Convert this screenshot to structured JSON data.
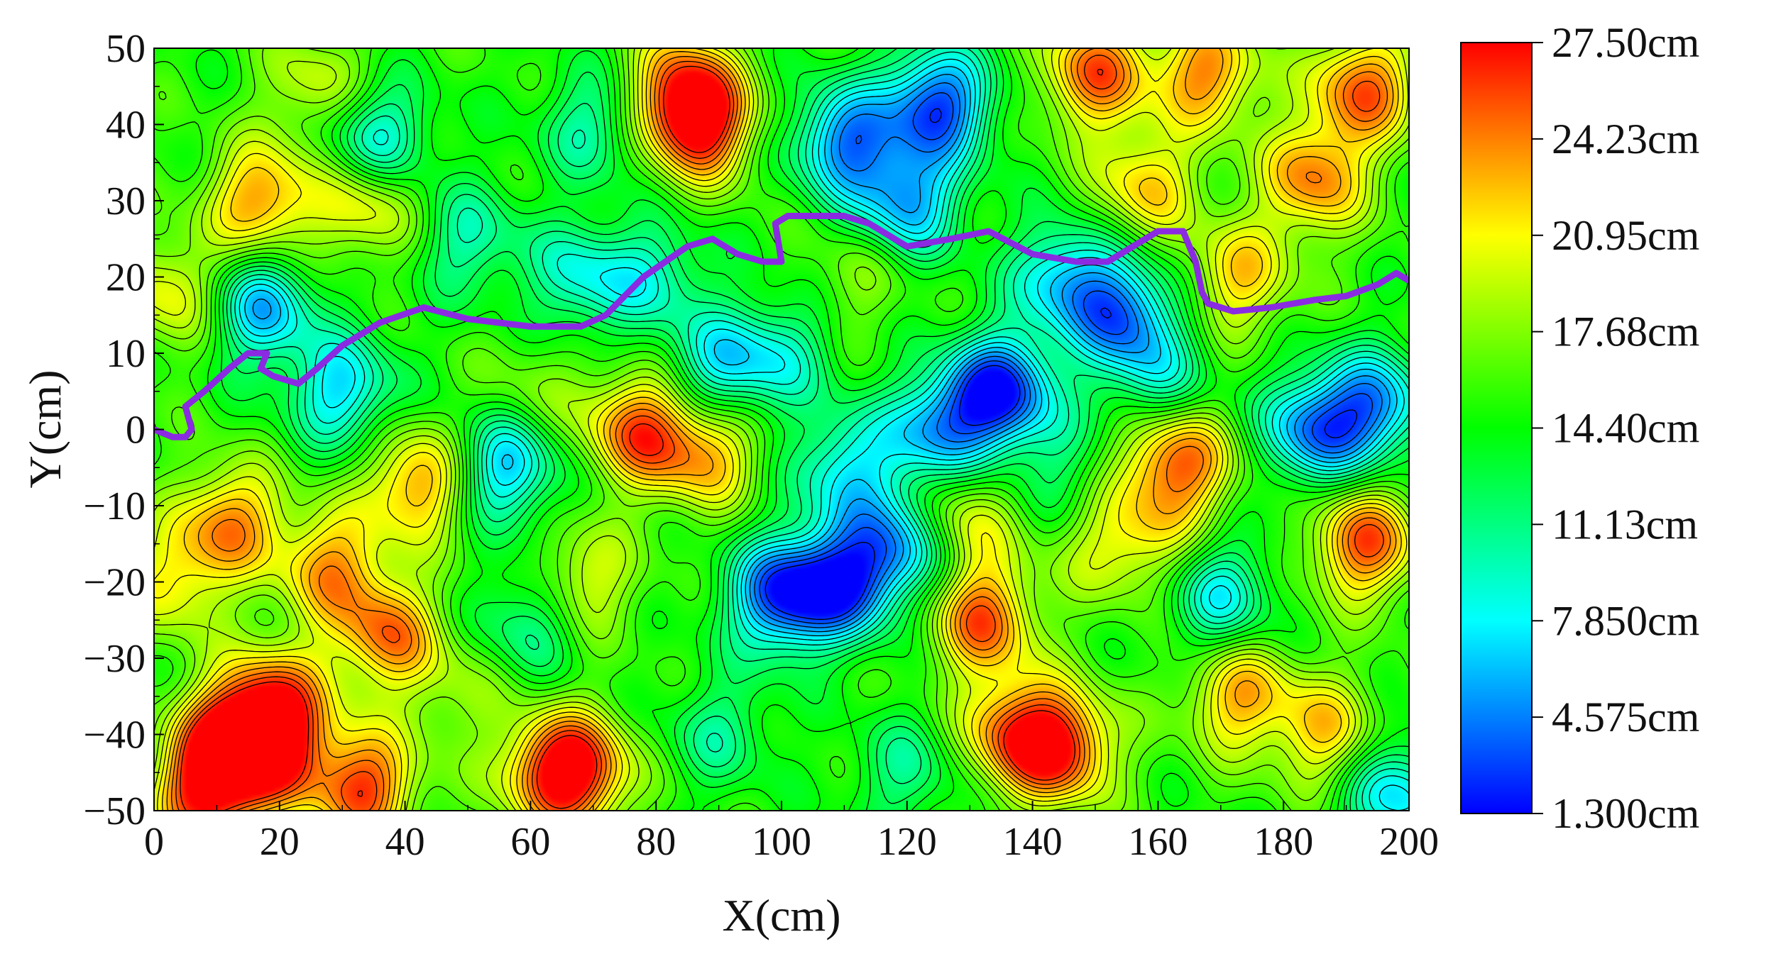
{
  "chart_data": {
    "type": "heatmap",
    "subtype": "filled contour map with overlaid path",
    "title": "",
    "xlabel": "X(cm)",
    "ylabel": "Y(cm)",
    "xlim": [
      0,
      200
    ],
    "ylim": [
      -50,
      50
    ],
    "xticks": [
      "0",
      "20",
      "40",
      "60",
      "80",
      "100",
      "120",
      "140",
      "160",
      "180",
      "200"
    ],
    "yticks": [
      "50",
      "40",
      "30",
      "20",
      "10",
      "0",
      "−10",
      "−20",
      "−30",
      "−40",
      "−50"
    ],
    "grid": false,
    "colorbar": {
      "min": 1.3,
      "max": 27.5,
      "ticks": [
        "27.50cm",
        "24.23cm",
        "20.95cm",
        "17.68cm",
        "14.40cm",
        "11.13cm",
        "7.850cm",
        "4.575cm",
        "1.300cm"
      ],
      "colormap": [
        "#0000ff",
        "#0080ff",
        "#00ffff",
        "#00ff80",
        "#00ff00",
        "#80ff00",
        "#ffff00",
        "#ff8000",
        "#ff0000"
      ],
      "placement": "right"
    },
    "contour_line_color": "#000000",
    "features": [
      {
        "x": 8,
        "y": -48,
        "value": 26.5
      },
      {
        "x": 12,
        "y": -40,
        "value": 24.5
      },
      {
        "x": 18,
        "y": -42,
        "value": 25.5
      },
      {
        "x": 3,
        "y": -20,
        "value": 21
      },
      {
        "x": 12,
        "y": -12,
        "value": 23.5
      },
      {
        "x": 28,
        "y": -18,
        "value": 23
      },
      {
        "x": 37,
        "y": -27,
        "value": 24
      },
      {
        "x": 33,
        "y": -47,
        "value": 26
      },
      {
        "x": 20,
        "y": -35,
        "value": 22
      },
      {
        "x": 42,
        "y": -7,
        "value": 24
      },
      {
        "x": 77,
        "y": 0,
        "value": 25
      },
      {
        "x": 88,
        "y": -3,
        "value": 23
      },
      {
        "x": 68,
        "y": -20,
        "value": 21
      },
      {
        "x": 63,
        "y": -45,
        "value": 23
      },
      {
        "x": 68,
        "y": -45,
        "value": 24
      },
      {
        "x": 87,
        "y": 40,
        "value": 26
      },
      {
        "x": 84,
        "y": 45,
        "value": 24
      },
      {
        "x": 17,
        "y": 30,
        "value": 24
      },
      {
        "x": 34,
        "y": 30,
        "value": 22
      },
      {
        "x": 3,
        "y": 18,
        "value": 21
      },
      {
        "x": 26,
        "y": 45,
        "value": 20
      },
      {
        "x": 132,
        "y": -25,
        "value": 25
      },
      {
        "x": 137,
        "y": -40,
        "value": 24
      },
      {
        "x": 145,
        "y": -42,
        "value": 25.5
      },
      {
        "x": 128,
        "y": -12,
        "value": 22
      },
      {
        "x": 158,
        "y": -15,
        "value": 20
      },
      {
        "x": 165,
        "y": -5,
        "value": 22
      },
      {
        "x": 193,
        "y": -15,
        "value": 25.5
      },
      {
        "x": 173,
        "y": -35,
        "value": 23
      },
      {
        "x": 187,
        "y": -40,
        "value": 22
      },
      {
        "x": 193,
        "y": 45,
        "value": 25
      },
      {
        "x": 150,
        "y": 47,
        "value": 25
      },
      {
        "x": 168,
        "y": 47,
        "value": 24
      },
      {
        "x": 185,
        "y": 33,
        "value": 24
      },
      {
        "x": 173,
        "y": 20,
        "value": 22
      },
      {
        "x": 158,
        "y": 32,
        "value": 22
      },
      {
        "x": 150,
        "y": -15,
        "value": 18
      },
      {
        "x": 112,
        "y": 20,
        "value": 18
      },
      {
        "x": 60,
        "y": 5,
        "value": 18
      },
      {
        "x": 48,
        "y": -35,
        "value": 18
      },
      {
        "x": 160,
        "y": -2,
        "value": 21
      },
      {
        "x": 100,
        "y": 10,
        "value": 10
      },
      {
        "x": 135,
        "y": 5,
        "value": 2
      },
      {
        "x": 100,
        "y": -22,
        "value": 3
      },
      {
        "x": 110,
        "y": -20,
        "value": 4
      },
      {
        "x": 120,
        "y": -15,
        "value": 6
      },
      {
        "x": 125,
        "y": 43,
        "value": 3
      },
      {
        "x": 110,
        "y": 38,
        "value": 5
      },
      {
        "x": 120,
        "y": 30,
        "value": 6
      },
      {
        "x": 185,
        "y": 0,
        "value": 5
      },
      {
        "x": 195,
        "y": 3,
        "value": 6
      },
      {
        "x": 155,
        "y": 15,
        "value": 5
      },
      {
        "x": 145,
        "y": 20,
        "value": 7
      },
      {
        "x": 170,
        "y": -22,
        "value": 8
      },
      {
        "x": 125,
        "y": 0,
        "value": 6
      },
      {
        "x": 110,
        "y": -5,
        "value": 8
      },
      {
        "x": 17,
        "y": 16,
        "value": 6
      },
      {
        "x": 30,
        "y": 5,
        "value": 7
      },
      {
        "x": 56,
        "y": -5,
        "value": 6
      },
      {
        "x": 35,
        "y": 38,
        "value": 7
      },
      {
        "x": 68,
        "y": 20,
        "value": 9
      },
      {
        "x": 90,
        "y": 8,
        "value": 8
      },
      {
        "x": 80,
        "y": 20,
        "value": 10
      },
      {
        "x": 70,
        "y": 40,
        "value": 10
      },
      {
        "x": 50,
        "y": 25,
        "value": 10
      },
      {
        "x": 198,
        "y": -48,
        "value": 7
      },
      {
        "x": 60,
        "y": -25,
        "value": 10
      },
      {
        "x": 160,
        "y": 5,
        "value": 9
      },
      {
        "x": 145,
        "y": -5,
        "value": 12
      },
      {
        "x": 90,
        "y": -40,
        "value": 11
      },
      {
        "x": 120,
        "y": -45,
        "value": 11
      }
    ],
    "path": {
      "color": "#8a2be2",
      "x": [
        0,
        3,
        5,
        6,
        5,
        8,
        12,
        15,
        18,
        17,
        19,
        23,
        26,
        30,
        36,
        43,
        50,
        60,
        68,
        72,
        78,
        85,
        89,
        93,
        97,
        100,
        99,
        101,
        106,
        110,
        114,
        120,
        127,
        133,
        140,
        147,
        152,
        156,
        160,
        164,
        166,
        167,
        168,
        172,
        178,
        185,
        190,
        195,
        198,
        200
      ],
      "y": [
        0,
        -1,
        -1,
        0,
        3,
        5,
        8,
        10,
        10,
        8,
        7,
        6,
        8,
        11,
        14,
        16,
        14.5,
        13.5,
        13.5,
        15,
        20,
        24,
        25,
        23,
        22,
        22,
        27,
        28,
        28,
        28,
        27,
        24,
        25,
        26,
        23,
        22,
        22,
        24,
        26,
        26,
        22,
        18,
        16.5,
        15.5,
        16,
        17,
        17.5,
        19,
        20.5,
        19.5
      ]
    }
  }
}
